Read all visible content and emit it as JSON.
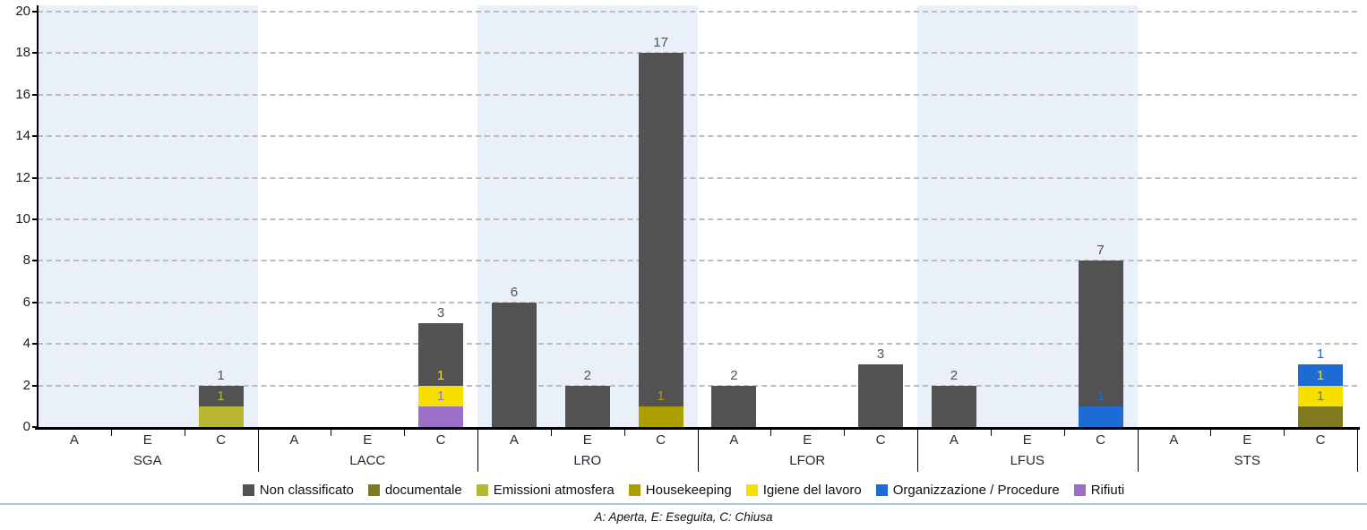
{
  "colors": {
    "background": "#ffffff",
    "band": "#eaf0f9",
    "gridline": "#bdbdbd",
    "axis": "#000000",
    "tick_label": "#1b1b1b",
    "category_label": "#212b36",
    "legend_text": "#111111",
    "divider": "#a6c5de",
    "footnote_text": "#111111"
  },
  "chart_data": {
    "type": "stacked-bar",
    "title": "",
    "xlabel": "",
    "ylabel": "",
    "ylim": [
      0,
      20
    ],
    "ytick_step": 2,
    "grid": "horizontal-dashed",
    "legend_position": "bottom",
    "status_keys": [
      "A",
      "E",
      "C"
    ],
    "series": [
      {
        "name": "Non classificato",
        "color": "#525252"
      },
      {
        "name": "documentale",
        "color": "#7e7a1d"
      },
      {
        "name": "Emissioni atmosfera",
        "color": "#b6b832"
      },
      {
        "name": "Housekeeping",
        "color": "#ab9f00"
      },
      {
        "name": "Igiene del lavoro",
        "color": "#f7e000"
      },
      {
        "name": "Organizzazione / Procedure",
        "color": "#1d6cd5"
      },
      {
        "name": "Rifiuti",
        "color": "#9b6fc5"
      }
    ],
    "groups": [
      {
        "label": "SGA",
        "bars": {
          "A": [],
          "E": [],
          "C": [
            {
              "series": "Emissioni atmosfera",
              "value": 1
            },
            {
              "series": "Non classificato",
              "value": 1
            }
          ]
        }
      },
      {
        "label": "LACC",
        "bars": {
          "A": [],
          "E": [],
          "C": [
            {
              "series": "Rifiuti",
              "value": 1
            },
            {
              "series": "Igiene del lavoro",
              "value": 1
            },
            {
              "series": "Non classificato",
              "value": 3
            }
          ]
        }
      },
      {
        "label": "LRO",
        "bars": {
          "A": [
            {
              "series": "Non classificato",
              "value": 6
            }
          ],
          "E": [
            {
              "series": "Non classificato",
              "value": 2
            }
          ],
          "C": [
            {
              "series": "Housekeeping",
              "value": 1
            },
            {
              "series": "Non classificato",
              "value": 17
            }
          ]
        }
      },
      {
        "label": "LFOR",
        "bars": {
          "A": [
            {
              "series": "Non classificato",
              "value": 2
            }
          ],
          "E": [],
          "C": [
            {
              "series": "Non classificato",
              "value": 3
            }
          ]
        }
      },
      {
        "label": "LFUS",
        "bars": {
          "A": [
            {
              "series": "Non classificato",
              "value": 2
            }
          ],
          "E": [],
          "C": [
            {
              "series": "Organizzazione / Procedure",
              "value": 1
            },
            {
              "series": "Non classificato",
              "value": 7
            }
          ]
        }
      },
      {
        "label": "STS",
        "bars": {
          "A": [],
          "E": [],
          "C": [
            {
              "series": "documentale",
              "value": 1
            },
            {
              "series": "Igiene del lavoro",
              "value": 1
            },
            {
              "series": "Organizzazione / Procedure",
              "value": 1
            }
          ]
        }
      }
    ],
    "footnote": "A: Aperta, E: Eseguita, C: Chiusa"
  }
}
